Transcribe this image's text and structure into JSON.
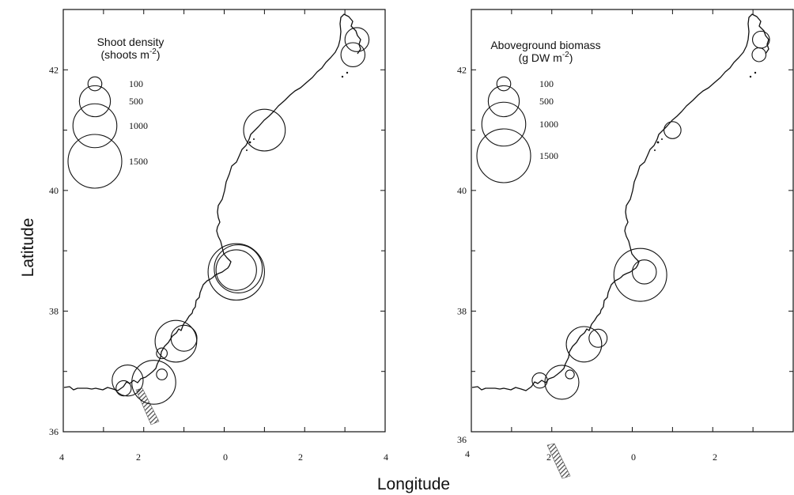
{
  "axis_titles": {
    "y": "Latitude",
    "x": "Longitude"
  },
  "colors": {
    "ink": "#111111",
    "hatch": "#555555",
    "background": "#ffffff"
  },
  "chart_data": [
    {
      "type": "scatter",
      "panel": "left",
      "legend": {
        "title_line1": "Shoot density",
        "title_line2_prefix": "(shoots m",
        "title_line2_sup": "-2",
        "title_line2_suffix": ")",
        "placement": "top-left",
        "entries": [
          {
            "label": "100",
            "value": 100
          },
          {
            "label": "500",
            "value": 500
          },
          {
            "label": "1000",
            "value": 1000
          },
          {
            "label": "1500",
            "value": 1500
          }
        ]
      },
      "y_ticks": [
        {
          "label": "42",
          "value": 42
        },
        {
          "label": "40",
          "value": 40
        },
        {
          "label": "38",
          "value": 38
        },
        {
          "label": "36",
          "value": 36
        }
      ],
      "x_ticks": [
        {
          "label": "4",
          "value": -4
        },
        {
          "label": "2",
          "value": -2
        },
        {
          "label": "0",
          "value": 0
        },
        {
          "label": "2",
          "value": 2
        },
        {
          "label": "4",
          "value": 4
        }
      ],
      "xlim": [
        -4,
        4
      ],
      "ylim": [
        36,
        43
      ],
      "points": [
        {
          "lon": 3.3,
          "lat": 42.5,
          "value": 300
        },
        {
          "lon": 3.2,
          "lat": 42.25,
          "value": 300
        },
        {
          "lon": 1.0,
          "lat": 41.0,
          "value": 900
        },
        {
          "lon": 0.3,
          "lat": 38.65,
          "value": 1650
        },
        {
          "lon": 0.35,
          "lat": 38.7,
          "value": 1200
        },
        {
          "lon": 0.3,
          "lat": 38.68,
          "value": 850
        },
        {
          "lon": -1.2,
          "lat": 37.5,
          "value": 900
        },
        {
          "lon": -1.0,
          "lat": 37.55,
          "value": 350
        },
        {
          "lon": -1.55,
          "lat": 37.3,
          "value": 60
        },
        {
          "lon": -1.75,
          "lat": 36.82,
          "value": 1000
        },
        {
          "lon": -1.55,
          "lat": 36.95,
          "value": 60
        },
        {
          "lon": -2.4,
          "lat": 36.85,
          "value": 500
        },
        {
          "lon": -2.5,
          "lat": 36.72,
          "value": 120
        }
      ]
    },
    {
      "type": "scatter",
      "panel": "right",
      "legend": {
        "title_line1": "Aboveground biomass",
        "title_line2_prefix": "(g DW m",
        "title_line2_sup": "-2",
        "title_line2_suffix": ")",
        "placement": "top-left",
        "entries": [
          {
            "label": "100",
            "value": 100
          },
          {
            "label": "500",
            "value": 500
          },
          {
            "label": "1000",
            "value": 1000
          },
          {
            "label": "1500",
            "value": 1500
          }
        ]
      },
      "y_ticks": [
        {
          "label": "42",
          "value": 42
        },
        {
          "label": "40",
          "value": 40
        },
        {
          "label": "38",
          "value": 38
        },
        {
          "label": "36",
          "value": 36
        }
      ],
      "x_ticks": [
        {
          "label": "4",
          "value": -4
        },
        {
          "label": "2",
          "value": -2
        },
        {
          "label": "0",
          "value": 0
        },
        {
          "label": "2",
          "value": 2
        }
      ],
      "xlim": [
        -4,
        4
      ],
      "ylim": [
        36,
        43
      ],
      "points": [
        {
          "lon": 3.2,
          "lat": 42.5,
          "value": 150
        },
        {
          "lon": 3.15,
          "lat": 42.25,
          "value": 100
        },
        {
          "lon": 1.0,
          "lat": 41.0,
          "value": 150
        },
        {
          "lon": 0.2,
          "lat": 38.6,
          "value": 1450
        },
        {
          "lon": 0.3,
          "lat": 38.65,
          "value": 300
        },
        {
          "lon": -1.2,
          "lat": 37.45,
          "value": 650
        },
        {
          "lon": -0.85,
          "lat": 37.55,
          "value": 170
        },
        {
          "lon": -1.75,
          "lat": 36.82,
          "value": 600
        },
        {
          "lon": -1.55,
          "lat": 36.95,
          "value": 40
        },
        {
          "lon": -2.3,
          "lat": 36.85,
          "value": 120
        }
      ]
    }
  ]
}
